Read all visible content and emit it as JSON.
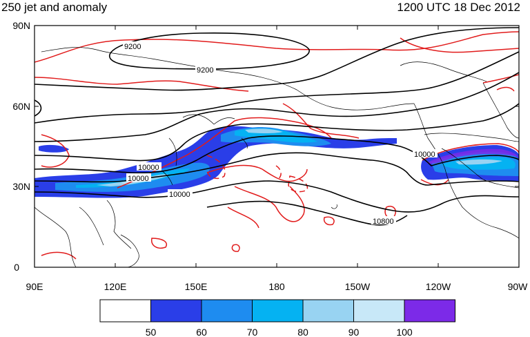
{
  "header": {
    "left_title": "250 jet and anomaly",
    "right_title": "1200 UTC 18 Dec 2012"
  },
  "map": {
    "lat_labels": [
      "90N",
      "60N",
      "30N",
      "0"
    ],
    "lon_labels": [
      "90E",
      "120E",
      "150E",
      "180",
      "150W",
      "120W",
      "90W"
    ],
    "height_contour_labels": [
      "9200",
      "9200",
      "10000",
      "10000",
      "10000",
      "10000",
      "10800"
    ],
    "colors": {
      "height_contour": "#000000",
      "anomaly_contour": "#e11b1b",
      "coastline": "#000000"
    }
  },
  "colorbar": {
    "ticks": [
      "50",
      "60",
      "70",
      "80",
      "90",
      "100"
    ],
    "colors": [
      "#ffffff",
      "#2a3ee8",
      "#1e8cf0",
      "#05b2f2",
      "#98d3f2",
      "#c8e8f8",
      "#7c2ae8"
    ]
  }
}
